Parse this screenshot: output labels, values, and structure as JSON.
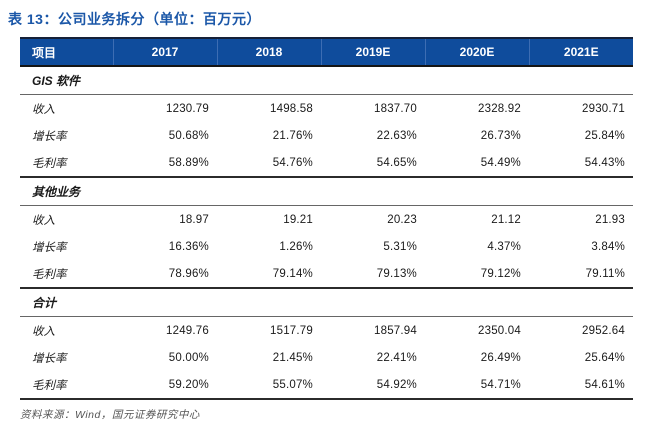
{
  "title": "表 13：公司业务拆分（单位：百万元）",
  "table": {
    "columns": [
      "项目",
      "2017",
      "2018",
      "2019E",
      "2020E",
      "2021E"
    ],
    "sections": [
      {
        "name": "GIS 软件",
        "rows": [
          {
            "label": "收入",
            "values": [
              "1230.79",
              "1498.58",
              "1837.70",
              "2328.92",
              "2930.71"
            ]
          },
          {
            "label": "增长率",
            "values": [
              "50.68%",
              "21.76%",
              "22.63%",
              "26.73%",
              "25.84%"
            ]
          },
          {
            "label": "毛利率",
            "values": [
              "58.89%",
              "54.76%",
              "54.65%",
              "54.49%",
              "54.43%"
            ]
          }
        ]
      },
      {
        "name": "其他业务",
        "rows": [
          {
            "label": "收入",
            "values": [
              "18.97",
              "19.21",
              "20.23",
              "21.12",
              "21.93"
            ]
          },
          {
            "label": "增长率",
            "values": [
              "16.36%",
              "1.26%",
              "5.31%",
              "4.37%",
              "3.84%"
            ]
          },
          {
            "label": "毛利率",
            "values": [
              "78.96%",
              "79.14%",
              "79.13%",
              "79.12%",
              "79.11%"
            ]
          }
        ]
      },
      {
        "name": "合计",
        "rows": [
          {
            "label": "收入",
            "values": [
              "1249.76",
              "1517.79",
              "1857.94",
              "2350.04",
              "2952.64"
            ]
          },
          {
            "label": "增长率",
            "values": [
              "50.00%",
              "21.45%",
              "22.41%",
              "26.49%",
              "25.64%"
            ]
          },
          {
            "label": "毛利率",
            "values": [
              "59.20%",
              "55.07%",
              "54.92%",
              "54.71%",
              "54.61%"
            ]
          }
        ]
      }
    ]
  },
  "footer": {
    "source": "资料来源：Wind，国元证券研究中心"
  },
  "colors": {
    "title_blue": "#1b57a8",
    "header_bg": "#0f4c9c",
    "header_text": "#ffffff",
    "header_divider": "#3d6db3",
    "rule_dark": "#2b2b2b",
    "rule_light": "#666666",
    "source_text": "#555555"
  }
}
